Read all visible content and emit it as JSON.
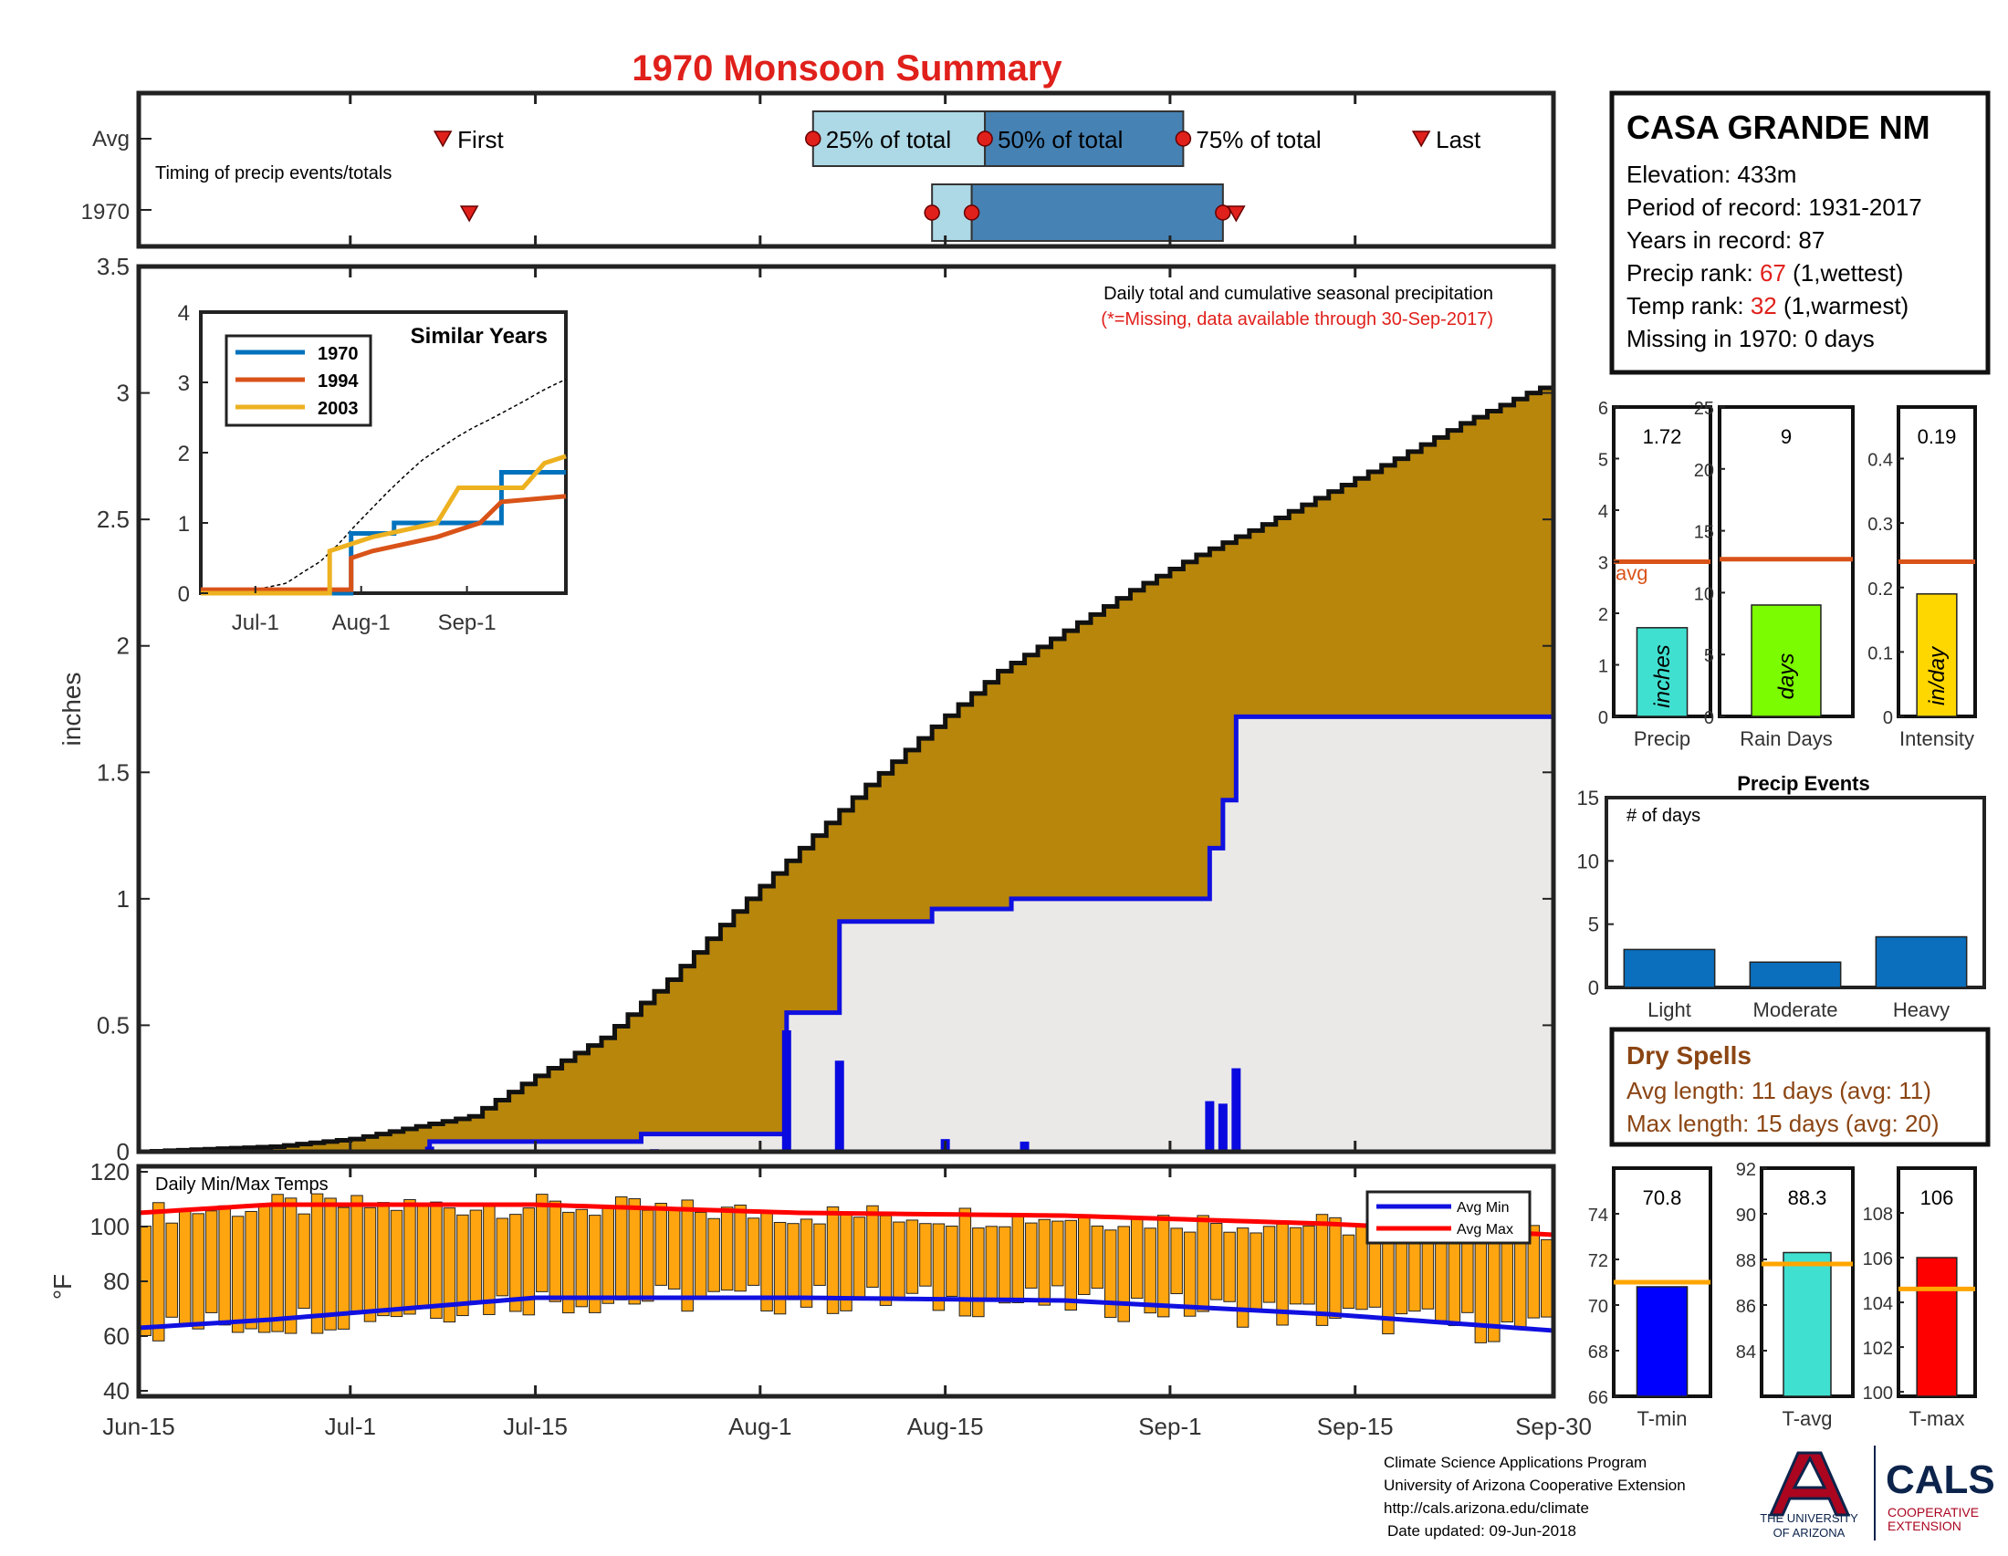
{
  "title": "1970 Monsoon Summary",
  "colors": {
    "title": "#e0201b",
    "cum_avg_fill": "#b8860b",
    "season_line": "#1010e0",
    "season_fill": "#ebe9e7",
    "bar_light_blue": "#add8e6",
    "bar_steel_blue": "#4682b4",
    "avg_line": "#d95319",
    "temp_bar": "#ffa510",
    "temp_avg_line": "#ffa500",
    "events_bar": "#0b6fbd",
    "dry_text": "#8b4513",
    "rank_red": "#e0201b"
  },
  "timing": {
    "row_labels": [
      "Avg",
      "1970"
    ],
    "note": "Timing of precip events/totals",
    "labels": {
      "first": "First",
      "p25": "25% of total",
      "p50": "50% of total",
      "p75": "75% of total",
      "last": "Last"
    },
    "avg": {
      "first": 23,
      "p25": 51,
      "p50": 64,
      "p75": 79,
      "last": 97
    },
    "year": {
      "first": 25,
      "p25": 60,
      "p50": 63,
      "p75": 82,
      "last": 83
    }
  },
  "main_chart": {
    "ylabel": "inches",
    "ylim": [
      0,
      3.5
    ],
    "yticks": [
      0,
      0.5,
      1,
      1.5,
      2,
      2.5,
      3,
      3.5
    ],
    "ytick_labels": [
      "0",
      "0.5",
      "1",
      "1.5",
      "2",
      "2.5",
      "3",
      "3.5"
    ],
    "xticks": [
      0,
      16,
      30,
      47,
      61,
      78,
      92,
      107
    ],
    "xtick_labels": [
      "Jun-15",
      "Jul-1",
      "Jul-15",
      "Aug-1",
      "Aug-15",
      "Sep-1",
      "Sep-15",
      "Sep-30"
    ],
    "annotation1": "Daily total and cumulative seasonal precipitation",
    "annotation2": "(*=Missing, data available through 30-Sep-2017)"
  },
  "similar_years": {
    "title": "Similar Years",
    "legend": [
      "1970",
      "1994",
      "2003"
    ],
    "colors": [
      "#0072bd",
      "#d95319",
      "#edb120"
    ],
    "yticks": [
      "0",
      "1",
      "2",
      "3",
      "4"
    ],
    "xtick_labels": [
      "Jul-1",
      "Aug-1",
      "Sep-1"
    ]
  },
  "station": {
    "name": "CASA GRANDE NM",
    "elevation": "Elevation: 433m",
    "period": "Period of record: 1931-2017",
    "years": "Years in record: 87",
    "precip_rank_prefix": "Precip rank: ",
    "precip_rank": "67",
    "precip_rank_suffix": " (1,wettest)",
    "temp_rank_prefix": "Temp rank: ",
    "temp_rank": "32",
    "temp_rank_suffix": " (1,warmest)",
    "missing": "Missing in 1970: 0 days"
  },
  "stat_boxes": [
    {
      "label": "Precip",
      "value": 1.72,
      "value_text": "1.72",
      "avg": 3.0,
      "ymax": 6,
      "ticks": [
        "0",
        "1",
        "2",
        "3",
        "4",
        "5",
        "6"
      ],
      "tick_vals": [
        0,
        1,
        2,
        3,
        4,
        5,
        6
      ],
      "unit": "inches",
      "color": "#40e0d0",
      "avg_label": "avg"
    },
    {
      "label": "Rain Days",
      "value": 9,
      "value_text": "9",
      "avg": 12.7,
      "ymax": 25,
      "ticks": [
        "0",
        "5",
        "10",
        "15",
        "20",
        "25"
      ],
      "tick_vals": [
        0,
        5,
        10,
        15,
        20,
        25
      ],
      "unit": "days",
      "color": "#7cfc00"
    },
    {
      "label": "Intensity",
      "value": 0.19,
      "value_text": "0.19",
      "avg": 0.24,
      "ymax": 0.48,
      "ticks": [
        "0",
        "0.1",
        "0.2",
        "0.3",
        "0.4"
      ],
      "tick_vals": [
        0,
        0.1,
        0.2,
        0.3,
        0.4
      ],
      "unit": "in/day",
      "color": "#ffd700"
    }
  ],
  "events": {
    "title": "Precip Events",
    "ylabel_note": "# of days",
    "categories": [
      "Light",
      "Moderate",
      "Heavy"
    ],
    "values": [
      3,
      2,
      4
    ],
    "ylim": [
      0,
      15
    ],
    "yticks": [
      "0",
      "5",
      "10",
      "15"
    ]
  },
  "dry_spells": {
    "title": "Dry Spells",
    "avg_length": "Avg length: 11 days (avg: 11)",
    "max_length": "Max length: 15 days (avg: 20)"
  },
  "temps": {
    "label": "Daily Min/Max Temps",
    "ylabel": "°F",
    "ylim": [
      38,
      122
    ],
    "yticks": [
      40,
      60,
      80,
      100,
      120
    ],
    "ytick_labels": [
      "40",
      "60",
      "80",
      "100",
      "120"
    ],
    "legend": [
      "Avg Min",
      "Avg Max"
    ]
  },
  "temp_boxes": [
    {
      "label": "T-min",
      "value": 70.8,
      "value_text": "70.8",
      "avg": 71.0,
      "ymin": 66,
      "ymax": 76,
      "ticks": [
        "66",
        "68",
        "70",
        "72",
        "74"
      ],
      "tick_vals": [
        66,
        68,
        70,
        72,
        74
      ],
      "color": "#0000ff"
    },
    {
      "label": "T-avg",
      "value": 88.3,
      "value_text": "88.3",
      "avg": 87.8,
      "ymin": 82,
      "ymax": 92,
      "ticks": [
        "84",
        "86",
        "88",
        "90",
        "92"
      ],
      "tick_vals": [
        84,
        86,
        88,
        90,
        92
      ],
      "color": "#40e0d0"
    },
    {
      "label": "T-max",
      "value": 106,
      "value_text": "106",
      "avg": 104.6,
      "ymin": 99.8,
      "ymax": 110,
      "ticks": [
        "100",
        "102",
        "104",
        "106",
        "108"
      ],
      "tick_vals": [
        100,
        102,
        104,
        106,
        108
      ],
      "color": "#ff0000"
    }
  ],
  "footer": {
    "line1": "Climate Science Applications Program",
    "line2": "University of Arizona Cooperative Extension",
    "line3": "http://cals.arizona.edu/climate",
    "line4": "Date updated: 09-Jun-2018",
    "ua_text1": "THE UNIVERSITY",
    "ua_text2": "OF ARIZONA",
    "cals_text": "CALS",
    "cals_sub1": "COOPERATIVE",
    "cals_sub2": "EXTENSION"
  },
  "chart_data": [
    {
      "type": "area",
      "title": "Daily total and cumulative seasonal precipitation",
      "ylabel": "inches",
      "xlabel": "",
      "x_start": "Jun-15",
      "x_end": "Sep-30",
      "ylim": [
        0,
        3.5
      ],
      "series": [
        {
          "name": "cumulative average",
          "points": [
            [
              0,
              0
            ],
            [
              5,
              0.01
            ],
            [
              10,
              0.02
            ],
            [
              16,
              0.05
            ],
            [
              20,
              0.09
            ],
            [
              25,
              0.14
            ],
            [
              30,
              0.3
            ],
            [
              35,
              0.45
            ],
            [
              40,
              0.68
            ],
            [
              45,
              0.95
            ],
            [
              50,
              1.2
            ],
            [
              55,
              1.45
            ],
            [
              60,
              1.68
            ],
            [
              65,
              1.9
            ],
            [
              70,
              2.06
            ],
            [
              75,
              2.22
            ],
            [
              80,
              2.36
            ],
            [
              85,
              2.48
            ],
            [
              90,
              2.61
            ],
            [
              95,
              2.74
            ],
            [
              100,
              2.88
            ],
            [
              105,
              3.0
            ],
            [
              107,
              3.04
            ]
          ]
        },
        {
          "name": "1970 cumulative",
          "points": [
            [
              0,
              0
            ],
            [
              22,
              0
            ],
            [
              22,
              0.04
            ],
            [
              38,
              0.04
            ],
            [
              38,
              0.07
            ],
            [
              49,
              0.07
            ],
            [
              49,
              0.55
            ],
            [
              53,
              0.55
            ],
            [
              53,
              0.91
            ],
            [
              60,
              0.91
            ],
            [
              60,
              0.96
            ],
            [
              66,
              0.96
            ],
            [
              66,
              1.0
            ],
            [
              81,
              1.0
            ],
            [
              81,
              1.2
            ],
            [
              82,
              1.2
            ],
            [
              82,
              1.39
            ],
            [
              83,
              1.39
            ],
            [
              83,
              1.72
            ],
            [
              107,
              1.72
            ]
          ]
        },
        {
          "name": "1970 daily",
          "points": [
            [
              22,
              0.02
            ],
            [
              39,
              0.01
            ],
            [
              49,
              0.48
            ],
            [
              53,
              0.36
            ],
            [
              61,
              0.05
            ],
            [
              67,
              0.04
            ],
            [
              81,
              0.2
            ],
            [
              82,
              0.19
            ],
            [
              83,
              0.33
            ]
          ]
        }
      ]
    },
    {
      "type": "line",
      "title": "Similar Years",
      "ylim": [
        0,
        4
      ],
      "series": [
        {
          "name": "1970",
          "points": [
            [
              0,
              0
            ],
            [
              35,
              0
            ],
            [
              35,
              0.85
            ],
            [
              45,
              0.85
            ],
            [
              45,
              1.0
            ],
            [
              70,
              1.0
            ],
            [
              70,
              1.72
            ],
            [
              85,
              1.72
            ]
          ]
        },
        {
          "name": "1994",
          "points": [
            [
              0,
              0.05
            ],
            [
              35,
              0.05
            ],
            [
              35,
              0.5
            ],
            [
              40,
              0.6
            ],
            [
              55,
              0.8
            ],
            [
              65,
              1.0
            ],
            [
              70,
              1.3
            ],
            [
              85,
              1.38
            ]
          ]
        },
        {
          "name": "2003",
          "points": [
            [
              0,
              0
            ],
            [
              30,
              0
            ],
            [
              30,
              0.6
            ],
            [
              40,
              0.8
            ],
            [
              55,
              1.0
            ],
            [
              60,
              1.5
            ],
            [
              75,
              1.5
            ],
            [
              80,
              1.85
            ],
            [
              85,
              1.95
            ]
          ]
        }
      ]
    },
    {
      "type": "bar",
      "title": "Precip Events",
      "categories": [
        "Light",
        "Moderate",
        "Heavy"
      ],
      "values": [
        3,
        2,
        4
      ],
      "ylim": [
        0,
        15
      ]
    },
    {
      "type": "bar",
      "title": "Daily Min/Max Temps",
      "ylabel": "°F",
      "ylim": [
        38,
        122
      ],
      "avg_max": [
        [
          0,
          105
        ],
        [
          10,
          108
        ],
        [
          30,
          108
        ],
        [
          50,
          105
        ],
        [
          70,
          104
        ],
        [
          90,
          101
        ],
        [
          107,
          97
        ]
      ],
      "avg_min": [
        [
          0,
          63
        ],
        [
          10,
          66
        ],
        [
          30,
          74
        ],
        [
          50,
          74
        ],
        [
          70,
          73
        ],
        [
          90,
          68
        ],
        [
          107,
          62
        ]
      ]
    }
  ]
}
